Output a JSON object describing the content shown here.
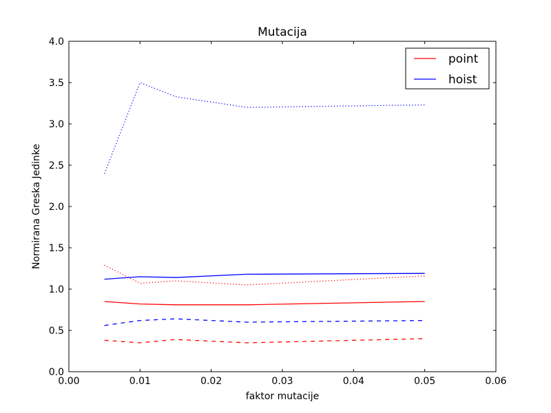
{
  "chart_data": {
    "type": "line",
    "title": "Mutacija",
    "xlabel": "faktor mutacije",
    "ylabel": "Normirana Greska Jedinke",
    "xlim": [
      0.0,
      0.06
    ],
    "ylim": [
      0.0,
      4.0
    ],
    "xticks": [
      0.0,
      0.01,
      0.02,
      0.03,
      0.04,
      0.05,
      0.06
    ],
    "xtick_labels": [
      "0.00",
      "0.01",
      "0.02",
      "0.03",
      "0.04",
      "0.05",
      "0.06"
    ],
    "yticks": [
      0.0,
      0.5,
      1.0,
      1.5,
      2.0,
      2.5,
      3.0,
      3.5,
      4.0
    ],
    "ytick_labels": [
      "0.0",
      "0.5",
      "1.0",
      "1.5",
      "2.0",
      "2.5",
      "3.0",
      "3.5",
      "4.0"
    ],
    "grid": false,
    "legend_position": "top-right",
    "legend": [
      {
        "label": "point",
        "color": "#ff0000"
      },
      {
        "label": "hoist",
        "color": "#0000ff"
      }
    ],
    "x": [
      0.005,
      0.01,
      0.015,
      0.025,
      0.05
    ],
    "series": [
      {
        "color": "#ff0000",
        "style": "solid",
        "values": [
          0.85,
          0.82,
          0.81,
          0.81,
          0.85
        ]
      },
      {
        "color": "#ff0000",
        "style": "dashed",
        "values": [
          0.38,
          0.35,
          0.39,
          0.35,
          0.4
        ]
      },
      {
        "color": "#ff0000",
        "style": "dotted",
        "values": [
          1.29,
          1.07,
          1.1,
          1.05,
          1.16
        ]
      },
      {
        "color": "#0000ff",
        "style": "solid",
        "values": [
          1.12,
          1.15,
          1.14,
          1.18,
          1.19
        ]
      },
      {
        "color": "#0000ff",
        "style": "dashed",
        "values": [
          0.56,
          0.62,
          0.64,
          0.6,
          0.62
        ]
      },
      {
        "color": "#0000ff",
        "style": "dotted",
        "values": [
          2.4,
          3.5,
          3.33,
          3.2,
          3.23
        ]
      }
    ]
  }
}
